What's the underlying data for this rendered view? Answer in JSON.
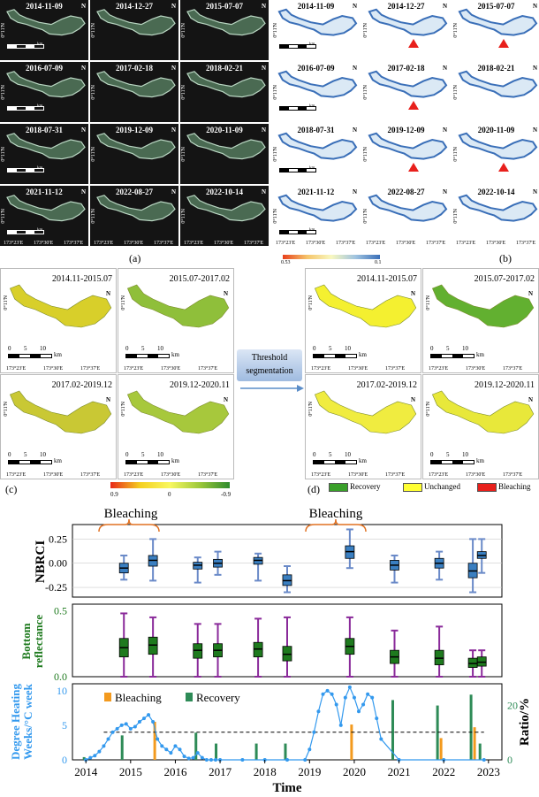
{
  "panel_a": {
    "label": "(a)",
    "dates": [
      "2014-11-09",
      "2014-12-27",
      "2015-07-07",
      "2016-07-09",
      "2017-02-18",
      "2018-02-21",
      "2018-07-31",
      "2019-12-09",
      "2020-11-09",
      "2021-11-12",
      "2022-08-27",
      "2022-10-14"
    ],
    "lon_ticks": [
      "173°23'E",
      "173°30'E",
      "173°37'E"
    ],
    "lat_tick": "0°11'N",
    "north": "N",
    "scale_labels": [
      "0",
      "5",
      "10"
    ],
    "scale_unit": "km"
  },
  "panel_b": {
    "label": "(b)",
    "dates": [
      "2014-11-09",
      "2014-12-27",
      "2015-07-07",
      "2016-07-09",
      "2017-02-18",
      "2018-02-21",
      "2018-07-31",
      "2019-12-09",
      "2020-11-09",
      "2021-11-12",
      "2022-08-27",
      "2022-10-14"
    ],
    "colorbar_min": "0.53",
    "colorbar_max": "0.1",
    "bleaching_marker_tiles": [
      1,
      2,
      4,
      7,
      8
    ]
  },
  "panel_c": {
    "label": "(c)",
    "periods": [
      "2014.11-2015.07",
      "2015.07-2017.02",
      "2017.02-2019.12",
      "2019.12-2020.11"
    ],
    "colorbar_labels": [
      "0.9",
      "0",
      "-0.9"
    ]
  },
  "arrow_text": {
    "line1": "Threshold",
    "line2": "segmentation"
  },
  "panel_d": {
    "label": "(d)",
    "periods": [
      "2014.11-2015.07",
      "2015.07-2017.02",
      "2017.02-2019.12",
      "2019.12-2020.11"
    ],
    "legend": [
      {
        "label": "Recovery",
        "color": "#3aa02a"
      },
      {
        "label": "Unchanged",
        "color": "#ffff33"
      },
      {
        "label": "Bleaching",
        "color": "#e8201c"
      }
    ]
  },
  "panel_e": {
    "label": "(e)",
    "xlabel": "Time",
    "x_ticks": [
      "2014",
      "2015",
      "2016",
      "2017",
      "2018",
      "2019",
      "2020",
      "2021",
      "2022",
      "2023"
    ],
    "bleaching_annotations": [
      "Bleaching",
      "Bleaching"
    ],
    "nbrci": {
      "ylabel": "NBRCI",
      "yticks": [
        "0.25",
        "0.00",
        "-0.25"
      ],
      "color": "#3a7fc1"
    },
    "bottom": {
      "ylabel_line1": "Bottom",
      "ylabel_line2": "reflectance",
      "yticks": [
        "0.5",
        "0.0"
      ],
      "color": "#1e7a1e"
    },
    "dhw": {
      "ylabel_line1": "Degree Heating",
      "ylabel_line2": "Weeks/°C week",
      "yticks": [
        "10",
        "5",
        "0"
      ],
      "right_label": "Ratio/%",
      "right_ticks": [
        "20",
        "0"
      ],
      "legend_bleaching": "Bleaching",
      "legend_recovery": "Recovery",
      "bleaching_color": "#f39a1e",
      "recovery_color": "#2e8b57",
      "dhw_color": "#3399ee"
    }
  },
  "chart_data": [
    {
      "type": "box",
      "name": "NBRCI",
      "x": [
        2014.85,
        2015.5,
        2016.5,
        2016.95,
        2017.85,
        2018.5,
        2019.9,
        2020.9,
        2021.9,
        2022.65,
        2022.85
      ],
      "median": [
        -0.05,
        0.03,
        -0.02,
        0.0,
        0.03,
        -0.18,
        0.12,
        -0.02,
        0.0,
        -0.08,
        0.08
      ],
      "q1": [
        -0.1,
        -0.03,
        -0.06,
        -0.04,
        -0.01,
        -0.23,
        0.05,
        -0.07,
        -0.05,
        -0.15,
        0.05
      ],
      "q3": [
        0.0,
        0.08,
        0.01,
        0.04,
        0.06,
        -0.12,
        0.18,
        0.03,
        0.05,
        0.0,
        0.12
      ],
      "whisker_low": [
        -0.17,
        -0.18,
        -0.2,
        -0.12,
        -0.18,
        -0.3,
        -0.05,
        -0.2,
        -0.17,
        -0.3,
        -0.1
      ],
      "whisker_high": [
        0.08,
        0.25,
        0.06,
        0.12,
        0.1,
        -0.03,
        0.35,
        0.08,
        0.12,
        0.25,
        0.25
      ],
      "ylim": [
        -0.35,
        0.4
      ]
    },
    {
      "type": "box",
      "name": "Bottom reflectance",
      "x": [
        2014.85,
        2015.5,
        2016.5,
        2016.95,
        2017.85,
        2018.5,
        2019.9,
        2020.9,
        2021.9,
        2022.65,
        2022.85
      ],
      "median": [
        0.22,
        0.24,
        0.2,
        0.2,
        0.21,
        0.17,
        0.23,
        0.15,
        0.14,
        0.1,
        0.11
      ],
      "q1": [
        0.15,
        0.17,
        0.14,
        0.15,
        0.15,
        0.12,
        0.17,
        0.1,
        0.09,
        0.07,
        0.08
      ],
      "q3": [
        0.29,
        0.3,
        0.25,
        0.25,
        0.26,
        0.23,
        0.29,
        0.2,
        0.2,
        0.14,
        0.15
      ],
      "whisker_low": [
        0.0,
        0.0,
        0.0,
        0.0,
        0.0,
        0.0,
        0.0,
        0.0,
        0.0,
        0.0,
        0.0
      ],
      "whisker_high": [
        0.48,
        0.45,
        0.4,
        0.4,
        0.44,
        0.45,
        0.45,
        0.35,
        0.38,
        0.2,
        0.2
      ],
      "ylim": [
        0,
        0.55
      ]
    },
    {
      "type": "line",
      "name": "Degree Heating Weeks",
      "x": [
        2014.0,
        2014.1,
        2014.2,
        2014.3,
        2014.4,
        2014.5,
        2014.6,
        2014.7,
        2014.8,
        2014.9,
        2015.0,
        2015.1,
        2015.2,
        2015.3,
        2015.4,
        2015.5,
        2015.6,
        2015.7,
        2015.8,
        2015.9,
        2016.0,
        2016.1,
        2016.2,
        2016.3,
        2016.4,
        2016.5,
        2016.6,
        2016.7,
        2016.8,
        2016.9,
        2017.0,
        2017.5,
        2018.0,
        2018.5,
        2018.9,
        2019.0,
        2019.1,
        2019.2,
        2019.3,
        2019.4,
        2019.5,
        2019.6,
        2019.7,
        2019.8,
        2019.9,
        2020.0,
        2020.1,
        2020.2,
        2020.3,
        2020.4,
        2020.5,
        2020.6,
        2021.0,
        2022.0,
        2022.9
      ],
      "y": [
        0,
        0.3,
        0.6,
        1.2,
        2,
        3,
        4,
        4.5,
        5,
        5.2,
        4.5,
        4.8,
        5.5,
        6,
        6.5,
        5.5,
        3,
        2,
        1.5,
        1,
        2,
        1.5,
        0.5,
        0.2,
        0.3,
        1,
        0.3,
        0,
        0,
        0,
        0,
        0,
        0,
        0,
        0,
        1.5,
        4,
        7,
        9.5,
        10,
        9.5,
        8,
        5,
        9,
        10.5,
        9,
        7,
        8,
        9.5,
        9,
        6,
        3,
        0,
        0,
        0
      ],
      "threshold": 4,
      "ylim": [
        0,
        11
      ]
    },
    {
      "type": "bar",
      "name": "Ratio/%",
      "series": [
        {
          "name": "Bleaching",
          "x": [
            2015.5,
            2019.9,
            2021.9,
            2022.65
          ],
          "values": [
            14,
            13,
            8,
            12
          ]
        },
        {
          "name": "Recovery",
          "x": [
            2014.0,
            2014.85,
            2016.5,
            2016.95,
            2017.85,
            2018.5,
            2020.9,
            2021.9,
            2022.65,
            2022.85
          ],
          "values": [
            1,
            9,
            10,
            6,
            6,
            6,
            22,
            20,
            24,
            6
          ]
        }
      ],
      "ylim": [
        0,
        28
      ]
    }
  ]
}
